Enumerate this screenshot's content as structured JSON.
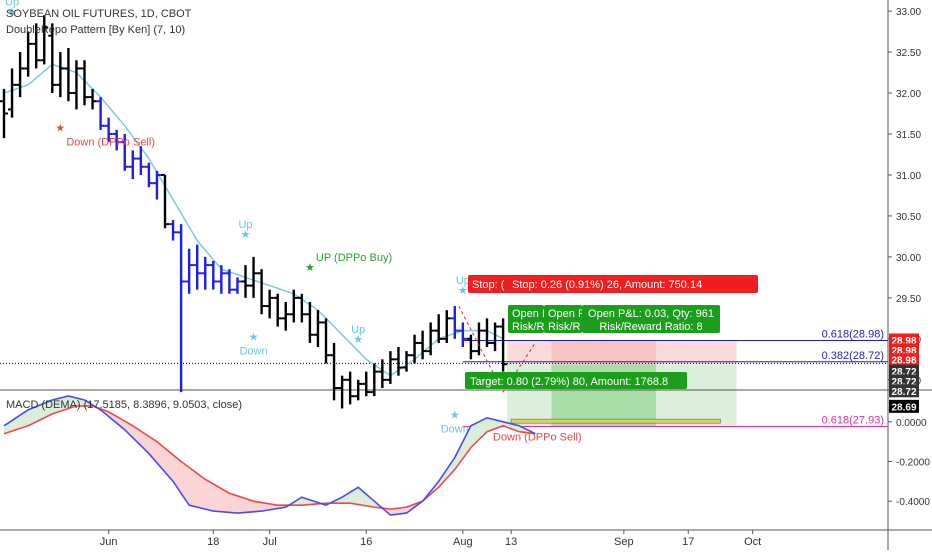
{
  "header": {
    "title": "SOYBEAN OIL FUTURES, 1D, CBOT",
    "indicator": "DoubleRepo Pattern [By Ken] (7, 10)"
  },
  "macd_label": "MACD (DEMA) (17.5185, 8.3896, 9.0503, close)",
  "colors": {
    "bar_black": "#000000",
    "bar_blue": "#1e1ee6",
    "ma_line": "#7ec8e3",
    "macd_line": "#4a4af0",
    "signal_line": "#f04848",
    "fill_green": "#dcefdc",
    "fill_red": "#fadada",
    "stop_red": "#f01e1e",
    "target_green": "#1b9e1b",
    "fib_blue": "#1e1ec8",
    "fib_pink": "#e02ca0"
  },
  "chart_data": [
    {
      "type": "candlestick",
      "title": "SOYBEAN OIL FUTURES, 1D, CBOT",
      "y_ticks": [
        33.0,
        32.5,
        32.0,
        31.5,
        31.0,
        30.5,
        30.0,
        29.5,
        29.0,
        28.5
      ],
      "y_tick_labels": [
        "33.00",
        "32.50",
        "32.00",
        "31.50",
        "31.00",
        "30.50",
        "30.00",
        "29.50",
        "29.00",
        "28.50"
      ],
      "ylim": [
        28.4,
        33.05
      ],
      "x_ticks": [
        {
          "day": 13,
          "label": "Jun"
        },
        {
          "day": 26,
          "label": "18"
        },
        {
          "day": 33,
          "label": "Jul"
        },
        {
          "day": 45,
          "label": "16"
        },
        {
          "day": 57,
          "label": "Aug"
        },
        {
          "day": 63,
          "label": "13"
        },
        {
          "day": 77,
          "label": "Sep"
        },
        {
          "day": 85,
          "label": "17"
        },
        {
          "day": 93,
          "label": "Oct"
        }
      ],
      "bars": [
        {
          "o": 31.9,
          "h": 32.05,
          "l": 31.45,
          "c": 31.75,
          "color": "black"
        },
        {
          "o": 31.8,
          "h": 32.3,
          "l": 31.7,
          "c": 32.1,
          "color": "black"
        },
        {
          "o": 32.1,
          "h": 32.5,
          "l": 31.95,
          "c": 32.3,
          "color": "black"
        },
        {
          "o": 32.3,
          "h": 32.75,
          "l": 32.2,
          "c": 32.6,
          "color": "black"
        },
        {
          "o": 32.6,
          "h": 32.85,
          "l": 32.3,
          "c": 32.4,
          "color": "black"
        },
        {
          "o": 32.4,
          "h": 32.95,
          "l": 32.35,
          "c": 32.8,
          "color": "black"
        },
        {
          "o": 32.7,
          "h": 32.85,
          "l": 32.0,
          "c": 32.1,
          "color": "black"
        },
        {
          "o": 32.1,
          "h": 32.5,
          "l": 31.95,
          "c": 32.3,
          "color": "black"
        },
        {
          "o": 32.3,
          "h": 32.55,
          "l": 31.9,
          "c": 32.0,
          "color": "black"
        },
        {
          "o": 32.0,
          "h": 32.4,
          "l": 31.8,
          "c": 32.3,
          "color": "black"
        },
        {
          "o": 32.3,
          "h": 32.4,
          "l": 31.85,
          "c": 31.95,
          "color": "black"
        },
        {
          "o": 31.95,
          "h": 32.05,
          "l": 31.8,
          "c": 31.9,
          "color": "black"
        },
        {
          "o": 31.9,
          "h": 31.95,
          "l": 31.55,
          "c": 31.6,
          "color": "blue"
        },
        {
          "o": 31.6,
          "h": 31.7,
          "l": 31.4,
          "c": 31.5,
          "color": "blue"
        },
        {
          "o": 31.5,
          "h": 31.55,
          "l": 31.3,
          "c": 31.4,
          "color": "blue"
        },
        {
          "o": 31.4,
          "h": 31.5,
          "l": 31.05,
          "c": 31.1,
          "color": "blue"
        },
        {
          "o": 31.1,
          "h": 31.3,
          "l": 30.95,
          "c": 31.2,
          "color": "blue"
        },
        {
          "o": 31.2,
          "h": 31.35,
          "l": 31.0,
          "c": 31.1,
          "color": "blue"
        },
        {
          "o": 31.1,
          "h": 31.15,
          "l": 30.85,
          "c": 30.9,
          "color": "blue"
        },
        {
          "o": 30.9,
          "h": 31.05,
          "l": 30.7,
          "c": 31.0,
          "color": "blue"
        },
        {
          "o": 31.0,
          "h": 31.0,
          "l": 30.35,
          "c": 30.4,
          "color": "black"
        },
        {
          "o": 30.4,
          "h": 30.45,
          "l": 30.2,
          "c": 30.3,
          "color": "blue"
        },
        {
          "o": 30.3,
          "h": 30.4,
          "l": 28.35,
          "c": 29.7,
          "color": "blue"
        },
        {
          "o": 29.7,
          "h": 30.1,
          "l": 29.55,
          "c": 29.9,
          "color": "blue"
        },
        {
          "o": 29.9,
          "h": 30.15,
          "l": 29.6,
          "c": 29.8,
          "color": "blue"
        },
        {
          "o": 29.8,
          "h": 30.0,
          "l": 29.6,
          "c": 29.9,
          "color": "blue"
        },
        {
          "o": 29.9,
          "h": 29.95,
          "l": 29.6,
          "c": 29.7,
          "color": "blue"
        },
        {
          "o": 29.7,
          "h": 29.9,
          "l": 29.55,
          "c": 29.8,
          "color": "blue"
        },
        {
          "o": 29.8,
          "h": 29.85,
          "l": 29.55,
          "c": 29.6,
          "color": "blue"
        },
        {
          "o": 29.6,
          "h": 29.75,
          "l": 29.55,
          "c": 29.7,
          "color": "blue"
        },
        {
          "o": 29.7,
          "h": 29.9,
          "l": 29.5,
          "c": 29.65,
          "color": "black"
        },
        {
          "o": 29.65,
          "h": 30.0,
          "l": 29.5,
          "c": 29.8,
          "color": "black"
        },
        {
          "o": 29.8,
          "h": 29.85,
          "l": 29.3,
          "c": 29.4,
          "color": "black"
        },
        {
          "o": 29.4,
          "h": 29.6,
          "l": 29.25,
          "c": 29.5,
          "color": "black"
        },
        {
          "o": 29.5,
          "h": 29.55,
          "l": 29.15,
          "c": 29.25,
          "color": "black"
        },
        {
          "o": 29.25,
          "h": 29.45,
          "l": 29.1,
          "c": 29.3,
          "color": "black"
        },
        {
          "o": 29.3,
          "h": 29.6,
          "l": 29.2,
          "c": 29.5,
          "color": "black"
        },
        {
          "o": 29.5,
          "h": 29.55,
          "l": 29.2,
          "c": 29.3,
          "color": "black"
        },
        {
          "o": 29.3,
          "h": 29.45,
          "l": 28.95,
          "c": 29.05,
          "color": "black"
        },
        {
          "o": 29.05,
          "h": 29.35,
          "l": 28.9,
          "c": 29.2,
          "color": "black"
        },
        {
          "o": 29.2,
          "h": 29.25,
          "l": 28.7,
          "c": 28.8,
          "color": "black"
        },
        {
          "o": 28.8,
          "h": 28.95,
          "l": 28.25,
          "c": 28.4,
          "color": "black"
        },
        {
          "o": 28.4,
          "h": 28.55,
          "l": 28.15,
          "c": 28.5,
          "color": "black"
        },
        {
          "o": 28.5,
          "h": 28.6,
          "l": 28.2,
          "c": 28.3,
          "color": "black"
        },
        {
          "o": 28.3,
          "h": 28.5,
          "l": 28.25,
          "c": 28.45,
          "color": "black"
        },
        {
          "o": 28.45,
          "h": 28.6,
          "l": 28.3,
          "c": 28.35,
          "color": "black"
        },
        {
          "o": 28.35,
          "h": 28.7,
          "l": 28.3,
          "c": 28.6,
          "color": "black"
        },
        {
          "o": 28.6,
          "h": 28.75,
          "l": 28.4,
          "c": 28.5,
          "color": "black"
        },
        {
          "o": 28.5,
          "h": 28.85,
          "l": 28.45,
          "c": 28.75,
          "color": "black"
        },
        {
          "o": 28.75,
          "h": 28.9,
          "l": 28.55,
          "c": 28.65,
          "color": "black"
        },
        {
          "o": 28.65,
          "h": 28.85,
          "l": 28.6,
          "c": 28.8,
          "color": "black"
        },
        {
          "o": 28.8,
          "h": 29.05,
          "l": 28.7,
          "c": 28.95,
          "color": "black"
        },
        {
          "o": 28.95,
          "h": 29.1,
          "l": 28.75,
          "c": 28.85,
          "color": "black"
        },
        {
          "o": 28.85,
          "h": 29.2,
          "l": 28.8,
          "c": 29.1,
          "color": "black"
        },
        {
          "o": 29.1,
          "h": 29.3,
          "l": 28.95,
          "c": 29.0,
          "color": "black"
        },
        {
          "o": 29.0,
          "h": 29.35,
          "l": 28.95,
          "c": 29.25,
          "color": "black"
        },
        {
          "o": 29.25,
          "h": 29.4,
          "l": 29.0,
          "c": 29.1,
          "color": "blue"
        },
        {
          "o": 29.1,
          "h": 29.2,
          "l": 28.9,
          "c": 29.0,
          "color": "blue"
        },
        {
          "o": 29.0,
          "h": 29.05,
          "l": 28.75,
          "c": 28.85,
          "color": "black"
        },
        {
          "o": 28.85,
          "h": 29.2,
          "l": 28.8,
          "c": 29.1,
          "color": "black"
        },
        {
          "o": 29.1,
          "h": 29.25,
          "l": 28.9,
          "c": 28.95,
          "color": "black"
        },
        {
          "o": 28.95,
          "h": 29.2,
          "l": 28.85,
          "c": 29.15,
          "color": "black"
        },
        {
          "o": 29.15,
          "h": 29.25,
          "l": 28.6,
          "c": 28.69,
          "color": "black"
        }
      ],
      "ma_line": [
        [
          0,
          32.0
        ],
        [
          3,
          32.1
        ],
        [
          6,
          32.35
        ],
        [
          9,
          32.25
        ],
        [
          12,
          31.95
        ],
        [
          15,
          31.6
        ],
        [
          18,
          31.2
        ],
        [
          21,
          30.7
        ],
        [
          24,
          30.2
        ],
        [
          27,
          29.85
        ],
        [
          30,
          29.75
        ],
        [
          33,
          29.65
        ],
        [
          36,
          29.55
        ],
        [
          39,
          29.35
        ],
        [
          42,
          29.05
        ],
        [
          45,
          28.75
        ],
        [
          48,
          28.55
        ],
        [
          51,
          28.75
        ],
        [
          54,
          29.0
        ],
        [
          57,
          29.1
        ],
        [
          60,
          29.1
        ],
        [
          62,
          29.0
        ]
      ],
      "price_levels": [
        {
          "label": "0.618(28.98)",
          "price": 28.98,
          "color": "blue"
        },
        {
          "label": "0.382(28.72)",
          "price": 28.72,
          "color": "blue"
        },
        {
          "label": "0.618(27.93)",
          "price": 27.93,
          "color": "pink"
        }
      ],
      "axis_price_labels": [
        {
          "text": "28.98",
          "price": 28.98,
          "style": "red"
        },
        {
          "text": "28.98",
          "price": 28.86,
          "style": "red"
        },
        {
          "text": "28.98",
          "price": 28.74,
          "style": "red"
        },
        {
          "text": "28.72",
          "price": 28.6,
          "style": "dark"
        },
        {
          "text": "28.72",
          "price": 28.48,
          "style": "dark"
        },
        {
          "text": "28.72",
          "price": 28.36,
          "style": "dark"
        },
        {
          "text": "28.69",
          "price": 28.17,
          "style": "black"
        }
      ],
      "signals": [
        {
          "day": 1,
          "price": 32.9,
          "text": "Up",
          "color": "cyan"
        },
        {
          "day": 7,
          "price": 31.75,
          "text": "Down (DPPo Sell)",
          "color": "red"
        },
        {
          "day": 30,
          "price": 30.18,
          "text": "Up",
          "color": "cyan"
        },
        {
          "day": 38,
          "price": 29.78,
          "text": "UP (DPPo Buy)",
          "color": "green"
        },
        {
          "day": 31,
          "price": 29.2,
          "text": "Down",
          "color": "cyan"
        },
        {
          "day": 44,
          "price": 28.9,
          "text": "Up",
          "color": "cyan"
        },
        {
          "day": 56,
          "price": 28.25,
          "text": "Down",
          "color": "cyan"
        },
        {
          "day": 57,
          "price": 29.5,
          "text": "Up",
          "color": "cyan"
        },
        {
          "day": 60,
          "price": 28.15,
          "text": "Down (DPPo Sell)",
          "color": "red"
        }
      ],
      "position_labels": {
        "stop": "Stop: 0.26 (0.91%) 26, Amount: 750.14",
        "stop_overlap": "Stop: (",
        "target": "Target: 0.80 (2.79%) 80, Amount: 1768.8",
        "open_pl": "Open P&L: 0.03, Qty: 961",
        "risk_reward": "Risk/Reward Ratio: 8",
        "open_overlap": "Open P",
        "risk_overlap": "Risk/R"
      }
    },
    {
      "type": "line",
      "title": "MACD (DEMA) (17.5185, 8.3896, 9.0503, close)",
      "y_ticks": [
        0.0,
        -0.2,
        -0.4
      ],
      "y_tick_labels": [
        "0.0000",
        "-0.2000",
        "-0.4000"
      ],
      "ylim": [
        -0.52,
        0.13
      ],
      "series": [
        {
          "role": "macd",
          "points": [
            [
              0,
              -0.02
            ],
            [
              3,
              0.06
            ],
            [
              6,
              0.11
            ],
            [
              8,
              0.13
            ],
            [
              10,
              0.11
            ],
            [
              12,
              0.06
            ],
            [
              15,
              -0.04
            ],
            [
              18,
              -0.16
            ],
            [
              21,
              -0.3
            ],
            [
              23,
              -0.42
            ],
            [
              26,
              -0.45
            ],
            [
              29,
              -0.46
            ],
            [
              32,
              -0.45
            ],
            [
              35,
              -0.43
            ],
            [
              37,
              -0.38
            ],
            [
              40,
              -0.42
            ],
            [
              42,
              -0.38
            ],
            [
              44,
              -0.33
            ],
            [
              46,
              -0.4
            ],
            [
              48,
              -0.47
            ],
            [
              50,
              -0.46
            ],
            [
              52,
              -0.4
            ],
            [
              54,
              -0.3
            ],
            [
              56,
              -0.18
            ],
            [
              58,
              -0.02
            ],
            [
              60,
              0.02
            ],
            [
              62,
              0.0
            ],
            [
              64,
              -0.02
            ],
            [
              66,
              -0.06
            ]
          ]
        },
        {
          "role": "signal",
          "points": [
            [
              0,
              -0.06
            ],
            [
              3,
              -0.02
            ],
            [
              6,
              0.04
            ],
            [
              9,
              0.08
            ],
            [
              11,
              0.08
            ],
            [
              13,
              0.05
            ],
            [
              16,
              -0.02
            ],
            [
              19,
              -0.1
            ],
            [
              22,
              -0.2
            ],
            [
              25,
              -0.29
            ],
            [
              28,
              -0.36
            ],
            [
              31,
              -0.4
            ],
            [
              34,
              -0.42
            ],
            [
              37,
              -0.42
            ],
            [
              40,
              -0.41
            ],
            [
              43,
              -0.41
            ],
            [
              46,
              -0.43
            ],
            [
              48,
              -0.44
            ],
            [
              50,
              -0.43
            ],
            [
              52,
              -0.4
            ],
            [
              54,
              -0.33
            ],
            [
              56,
              -0.24
            ],
            [
              58,
              -0.13
            ],
            [
              60,
              -0.05
            ],
            [
              62,
              -0.02
            ],
            [
              64,
              -0.05
            ],
            [
              66,
              -0.06
            ]
          ]
        }
      ]
    }
  ]
}
